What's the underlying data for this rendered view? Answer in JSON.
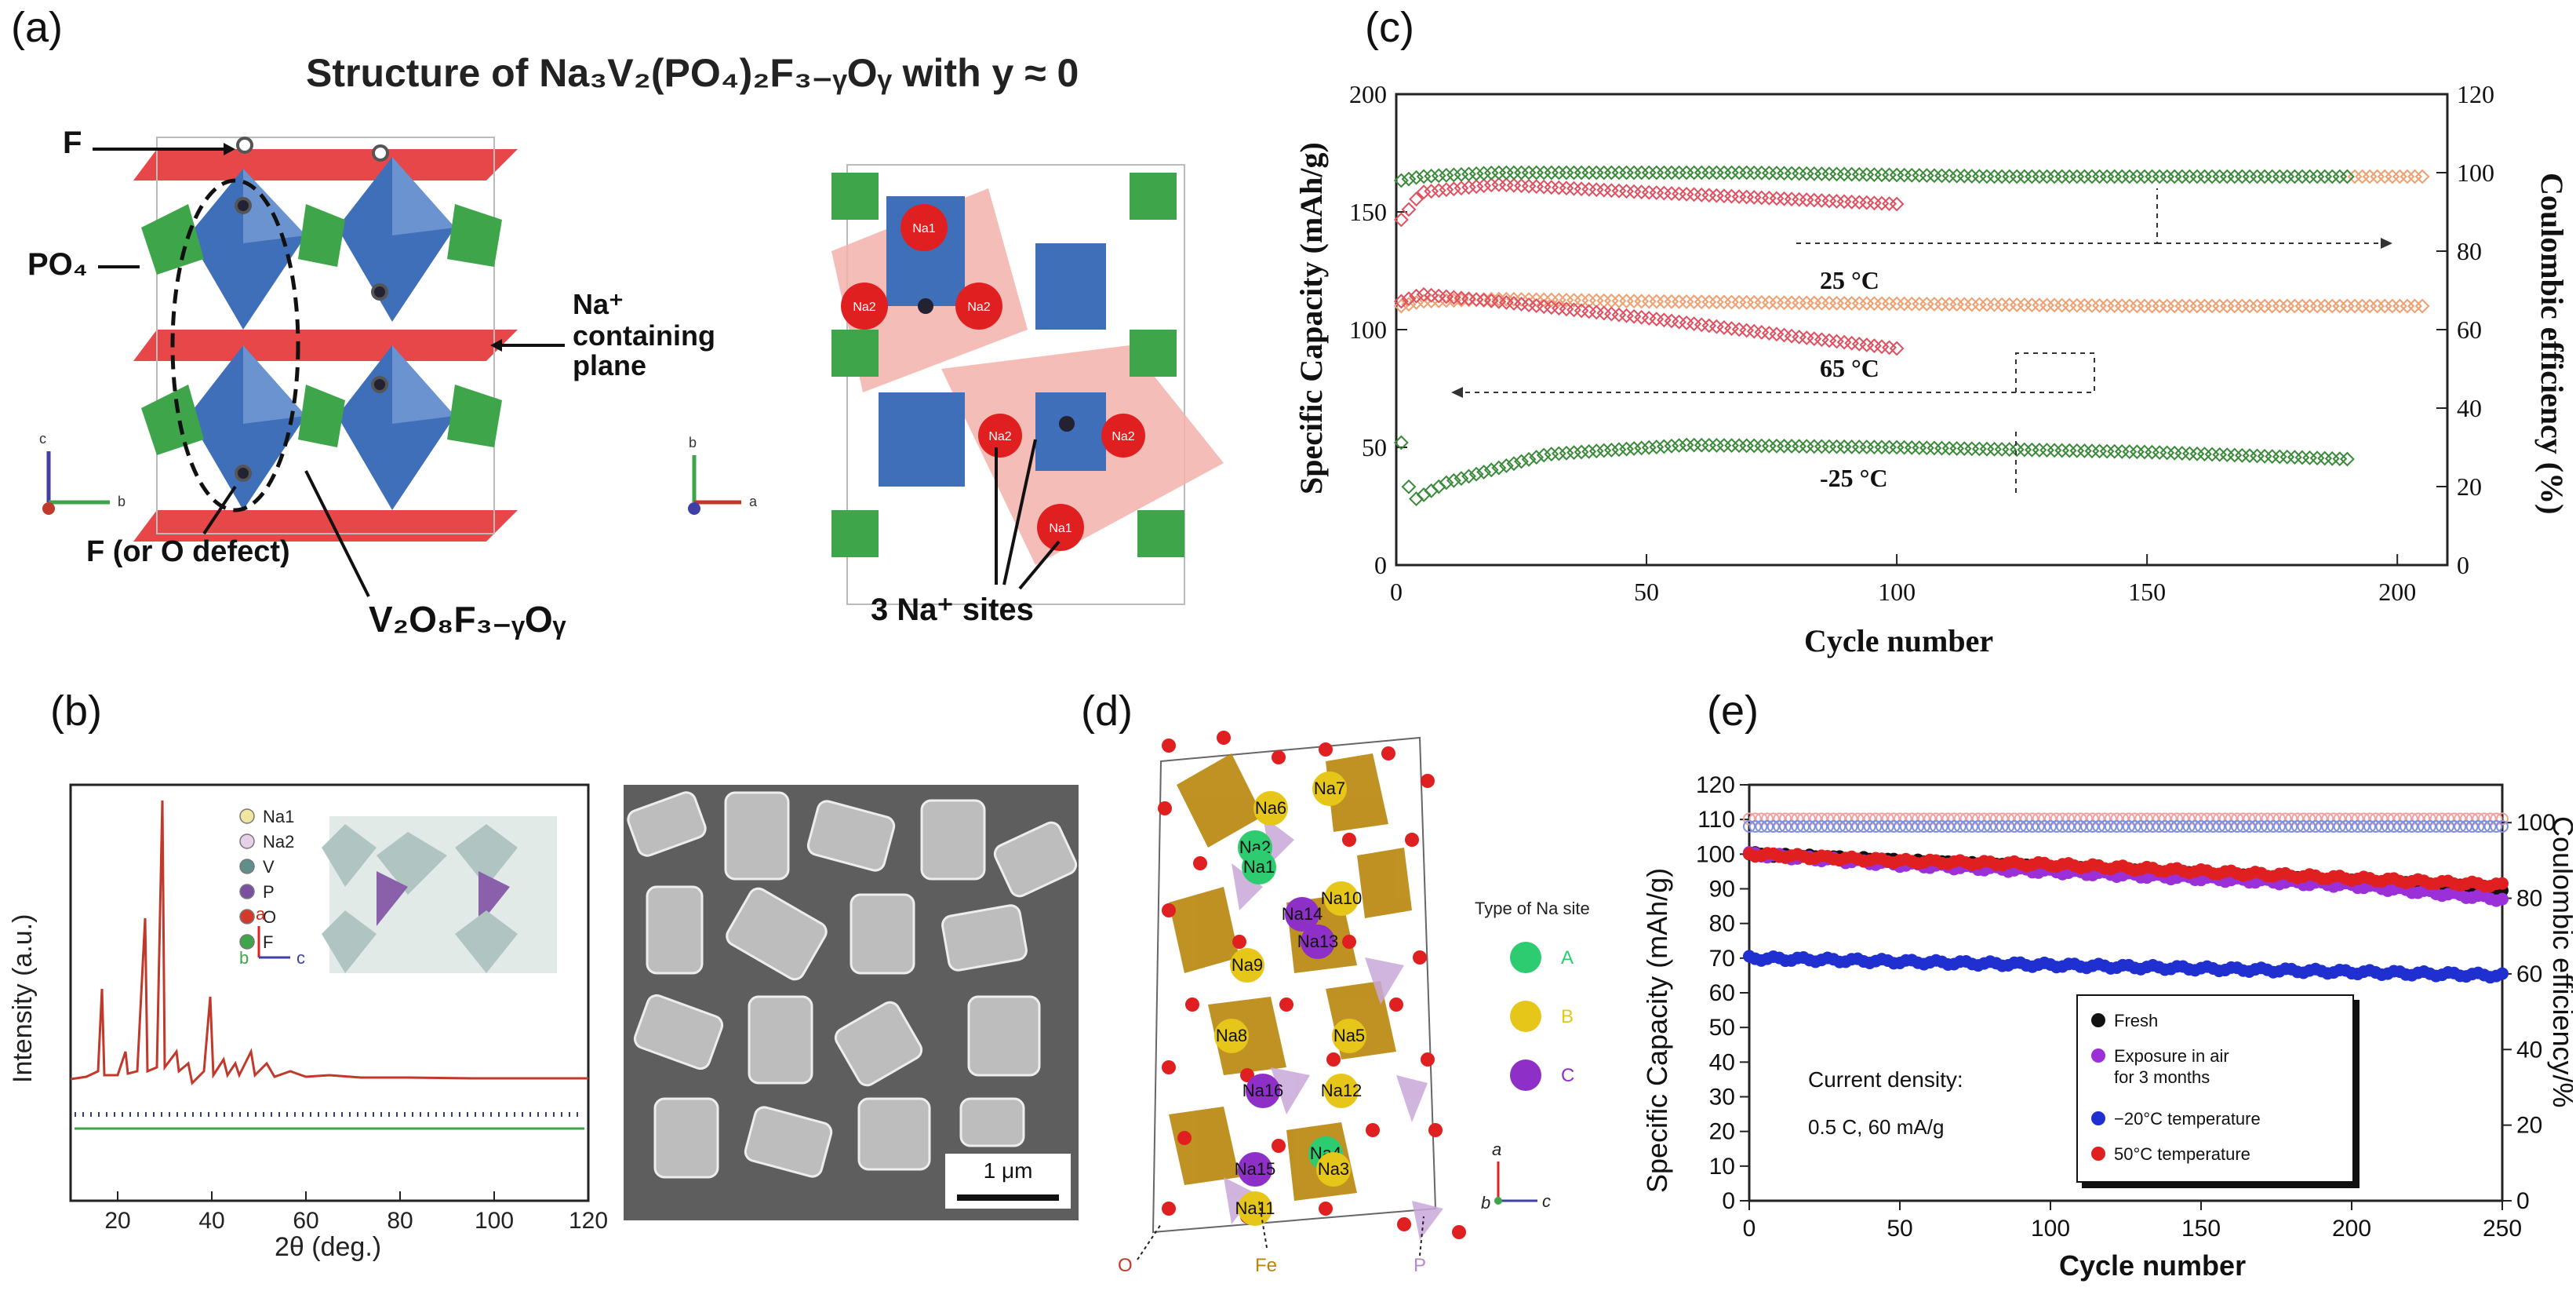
{
  "panel_labels": {
    "a": "(a)",
    "b": "(b)",
    "c": "(c)",
    "d": "(d)",
    "e": "(e)"
  },
  "panel_a": {
    "title": "Structure of Na₃V₂(PO₄)₂F₃₋ᵧOᵧ with y ≈ 0",
    "label_F": "F",
    "label_PO4": "PO₄",
    "label_na_plane_1": "Na⁺",
    "label_na_plane_2": "containing",
    "label_na_plane_3": "plane",
    "label_defect": "F (or O defect)",
    "label_v2o8": "V₂O₈F₃₋ᵧOᵧ",
    "label_sites": "3 Na⁺ sites",
    "na_atoms": [
      "Na1",
      "Na2",
      "Na2",
      "Na2",
      "Na2",
      "Na1"
    ],
    "axis_c": "c",
    "axis_b": "b",
    "axis_a": "a"
  },
  "panel_b": {
    "legend": [
      "Na1",
      "Na2",
      "V",
      "P",
      "O",
      "F"
    ],
    "legend_colors": [
      "#f0e6a0",
      "#e8d0e8",
      "#5f8f8a",
      "#7d4fa0",
      "#d43a2a",
      "#3fa54a"
    ],
    "ylabel": "Intensity (a.u.)",
    "xlabel": "2θ (deg.)",
    "x_ticks": [
      "20",
      "40",
      "60",
      "80",
      "100",
      "120"
    ],
    "axis_a": "a",
    "axis_b": "b",
    "axis_c": "c",
    "scale_bar": "1 μm"
  },
  "panel_d": {
    "legend_title": "Type of Na site",
    "legend": [
      "A",
      "B",
      "C"
    ],
    "legend_colors": [
      "#2ecc71",
      "#e6c619",
      "#8e2fc7"
    ],
    "site_labels": [
      "Na7",
      "Na6",
      "Na10",
      "Na14",
      "Na2",
      "Na1",
      "Na13",
      "Na9",
      "Na5",
      "Na8",
      "Na12",
      "Na16",
      "Na4",
      "Na3",
      "Na15",
      "Na11"
    ],
    "bottom_labels": [
      "O",
      "Fe",
      "P"
    ],
    "axis_a": "a",
    "axis_b": "b",
    "axis_c": "c"
  },
  "chart_data": [
    {
      "type": "scatter",
      "title": "",
      "xlabel": "Cycle number",
      "ylabel": "Specific Capacity (mAh/g)",
      "y2label": "Coulombic efficiency (%)",
      "xlim": [
        0,
        210
      ],
      "ylim": [
        0,
        200
      ],
      "y2lim": [
        0,
        120
      ],
      "x_ticks": [
        "0",
        "50",
        "100",
        "150",
        "200"
      ],
      "y_ticks": [
        "0",
        "50",
        "100",
        "150",
        "200"
      ],
      "y2_ticks": [
        "0",
        "20",
        "40",
        "60",
        "80",
        "100",
        "120"
      ],
      "annotations": [
        "25 °C",
        "65 °C",
        "-25 °C"
      ],
      "series": [
        {
          "name": "25 °C capacity",
          "axis": "left",
          "color": "#f0a070",
          "x": [
            1,
            5,
            20,
            50,
            100,
            150,
            205
          ],
          "values": [
            110,
            112,
            113,
            112,
            111,
            110,
            110
          ]
        },
        {
          "name": "65 °C capacity",
          "axis": "left",
          "color": "#e05060",
          "x": [
            1,
            5,
            20,
            50,
            80,
            100
          ],
          "values": [
            112,
            115,
            112,
            105,
            97,
            92
          ]
        },
        {
          "name": "-25 °C capacity",
          "axis": "left",
          "color": "#3a8a3a",
          "x": [
            1,
            3,
            10,
            30,
            58,
            100,
            150,
            190
          ],
          "values": [
            52,
            27,
            35,
            47,
            51,
            50,
            48,
            45
          ]
        },
        {
          "name": "25 °C CE",
          "axis": "right",
          "color": "#f0a070",
          "x": [
            190,
            200,
            205
          ],
          "values": [
            99,
            99,
            99
          ]
        },
        {
          "name": "65 °C CE",
          "axis": "right",
          "color": "#e05060",
          "x": [
            1,
            5,
            20,
            50,
            100
          ],
          "values": [
            88,
            95,
            97,
            95,
            92
          ]
        },
        {
          "name": "-25 °C CE",
          "axis": "right",
          "color": "#3a8a3a",
          "x": [
            1,
            5,
            20,
            70,
            120,
            190
          ],
          "values": [
            98,
            99,
            100,
            100,
            99,
            99
          ]
        }
      ]
    },
    {
      "type": "scatter",
      "title": "",
      "xlabel": "Cycle number",
      "ylabel": "Specific Capacity (mAh/g)",
      "y2label": "Coulombic efficiency/%",
      "xlim": [
        0,
        250
      ],
      "ylim": [
        0,
        120
      ],
      "y2lim": [
        0,
        110
      ],
      "x_ticks": [
        "0",
        "50",
        "100",
        "150",
        "200",
        "250"
      ],
      "y_ticks": [
        "0",
        "10",
        "20",
        "30",
        "40",
        "50",
        "60",
        "70",
        "80",
        "90",
        "100",
        "110",
        "120"
      ],
      "y2_ticks": [
        "0",
        "20",
        "40",
        "60",
        "80",
        "100"
      ],
      "annotation_1": "Current density:",
      "annotation_2": "0.5 C, 60    mA/g",
      "legend_position": "bottom-right",
      "series": [
        {
          "name": "Fresh",
          "color": "#111111",
          "x": [
            0,
            50,
            100,
            150,
            200,
            250
          ],
          "values": [
            100,
            98,
            96,
            94,
            92,
            90
          ]
        },
        {
          "name": "Exposure in air for 3 months",
          "color": "#9b30d9",
          "x": [
            0,
            50,
            100,
            150,
            200,
            250
          ],
          "values": [
            100,
            97,
            95,
            93,
            91,
            87
          ]
        },
        {
          "name": "−20°C temperature",
          "color": "#2030d0",
          "x": [
            0,
            50,
            100,
            150,
            200,
            250
          ],
          "values": [
            70,
            69,
            68,
            67,
            66,
            65
          ]
        },
        {
          "name": "50°C temperature",
          "color": "#e02020",
          "x": [
            0,
            50,
            100,
            150,
            200,
            250
          ],
          "values": [
            100,
            98,
            97,
            95,
            93,
            91
          ]
        },
        {
          "name": "CE (red)",
          "axis": "right",
          "color": "#f2a0a0",
          "x": [
            0,
            250
          ],
          "values": [
            101,
            101
          ]
        },
        {
          "name": "CE (blue)",
          "axis": "right",
          "color": "#8090e0",
          "x": [
            0,
            250
          ],
          "values": [
            99,
            99
          ]
        }
      ],
      "legend": [
        "Fresh",
        "Exposure in air",
        "for 3 months",
        "−20°C temperature",
        "50°C temperature"
      ]
    }
  ]
}
